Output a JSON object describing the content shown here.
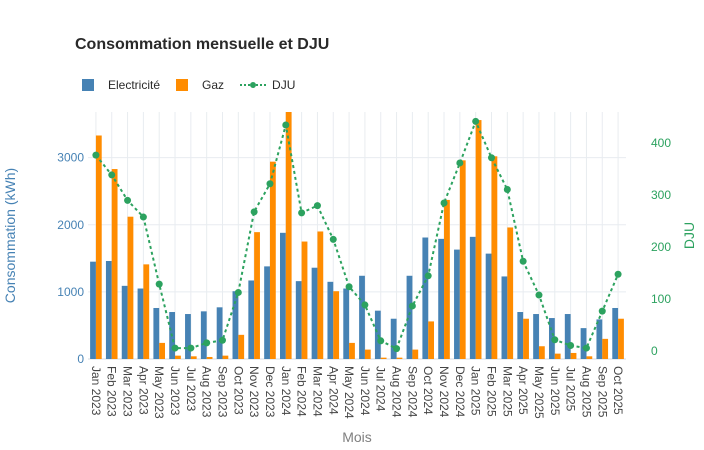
{
  "title": "Consommation mensuelle et DJU",
  "colors": {
    "electricite": "#4682b4",
    "gaz": "#ff8c00",
    "dju": "#2ca25f",
    "grid": "#e8ecf0",
    "xtick": "#444444",
    "xlabel": "#7f7f7f"
  },
  "legend": [
    "Electricité",
    "Gaz",
    "DJU"
  ],
  "chart_data": {
    "type": "bar",
    "title": "Consommation mensuelle et DJU",
    "xlabel": "Mois",
    "ylabel": "Consommation (kWh)",
    "y2label": "DJU",
    "categories": [
      "Jan 2023",
      "Feb 2023",
      "Mar 2023",
      "Apr 2023",
      "May 2023",
      "Jun 2023",
      "Jul 2023",
      "Aug 2023",
      "Sep 2023",
      "Oct 2023",
      "Nov 2023",
      "Dec 2023",
      "Jan 2024",
      "Feb 2024",
      "Mar 2024",
      "Apr 2024",
      "May 2024",
      "Jun 2024",
      "Jul 2024",
      "Aug 2024",
      "Sep 2024",
      "Oct 2024",
      "Nov 2024",
      "Dec 2024",
      "Jan 2025",
      "Feb 2025",
      "Mar 2025",
      "Apr 2025",
      "May 2025",
      "Jun 2025",
      "Jul 2025",
      "Aug 2025",
      "Sep 2025",
      "Oct 2025"
    ],
    "series": [
      {
        "name": "Electricité",
        "type": "bar",
        "axis": "y",
        "values": [
          1450,
          1460,
          1090,
          1050,
          760,
          700,
          670,
          710,
          770,
          1010,
          1170,
          1380,
          1880,
          1160,
          1360,
          1150,
          1050,
          1240,
          720,
          600,
          1240,
          1810,
          1790,
          1630,
          1820,
          1570,
          1230,
          700,
          670,
          610,
          670,
          460,
          590,
          760
        ]
      },
      {
        "name": "Gaz",
        "type": "bar",
        "axis": "y",
        "values": [
          3330,
          2830,
          2120,
          1410,
          240,
          50,
          40,
          30,
          50,
          360,
          1890,
          2940,
          3680,
          1750,
          1900,
          1010,
          240,
          140,
          20,
          20,
          140,
          560,
          2370,
          2960,
          3560,
          3020,
          1960,
          600,
          190,
          80,
          90,
          40,
          300,
          600
        ]
      },
      {
        "name": "DJU",
        "type": "line",
        "axis": "y2",
        "values": [
          377,
          339,
          290,
          258,
          129,
          6,
          6,
          16,
          21,
          113,
          268,
          322,
          435,
          266,
          280,
          215,
          124,
          89,
          20,
          5,
          87,
          145,
          285,
          362,
          442,
          372,
          311,
          173,
          108,
          22,
          11,
          6,
          77,
          148
        ]
      }
    ],
    "ylim": [
      0,
      3680
    ],
    "y2lim": [
      -15,
      460
    ],
    "yticks": [
      0,
      1000,
      2000,
      3000
    ],
    "y2ticks": [
      0,
      100,
      200,
      300,
      400
    ],
    "grid": true,
    "legend_position": "top-left"
  }
}
